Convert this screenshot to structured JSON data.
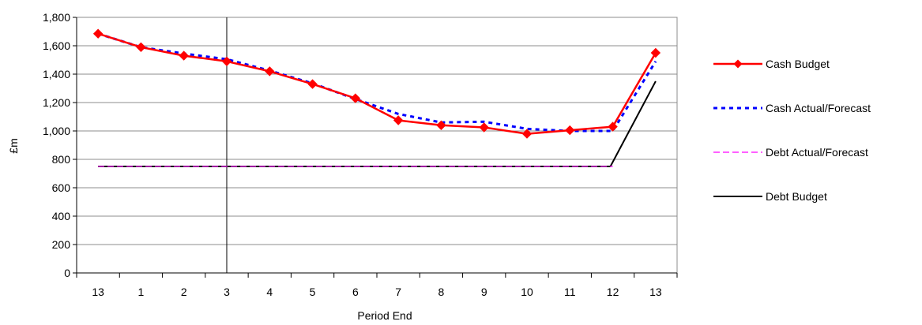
{
  "chart_data": {
    "type": "line",
    "title": "",
    "xlabel": "Period End",
    "ylabel": "£m",
    "ylim": [
      0,
      1800
    ],
    "ytick_step": 200,
    "y_tick_labels": [
      "0",
      "200",
      "400",
      "600",
      "800",
      "1,000",
      "1,200",
      "1,400",
      "1,600",
      "1,800"
    ],
    "categories": [
      "13",
      "1",
      "2",
      "3",
      "4",
      "5",
      "6",
      "7",
      "8",
      "9",
      "10",
      "11",
      "12",
      "13"
    ],
    "grid": "horizontal",
    "legend_position": "right",
    "marker_line_after_category": "3",
    "series": [
      {
        "name": "Cash Budget",
        "color": "#ff0000",
        "style": "solid-diamond",
        "values": [
          1685,
          1590,
          1530,
          1490,
          1420,
          1330,
          1230,
          1075,
          1040,
          1025,
          980,
          1005,
          1030,
          1550
        ]
      },
      {
        "name": "Cash Actual/Forecast",
        "color": "#0000ff",
        "style": "dotted",
        "values": [
          1685,
          1590,
          1545,
          1505,
          1425,
          1335,
          1225,
          1120,
          1060,
          1065,
          1015,
          1000,
          1000,
          1490
        ]
      },
      {
        "name": "Debt Actual/Forecast",
        "color": "#ff00ff",
        "style": "dashed",
        "values": [
          750,
          750,
          750,
          750,
          750,
          750,
          750,
          750,
          750,
          750,
          750,
          750,
          750,
          null
        ]
      },
      {
        "name": "Debt Budget",
        "color": "#000000",
        "style": "solid",
        "x_offset": 0.5,
        "values": [
          750,
          750,
          750,
          750,
          750,
          750,
          750,
          750,
          750,
          750,
          750,
          750,
          750,
          1350
        ]
      }
    ]
  }
}
